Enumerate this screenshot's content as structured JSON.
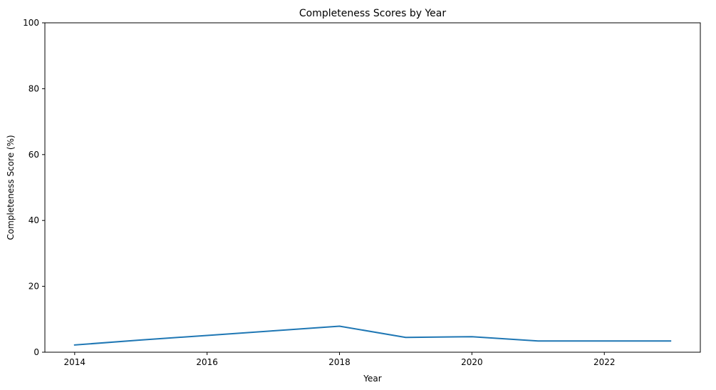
{
  "chart_data": {
    "type": "line",
    "title": "Completeness Scores by Year",
    "xlabel": "Year",
    "ylabel": "Completeness Score (%)",
    "xlim": [
      2013.55,
      2023.45
    ],
    "ylim": [
      0,
      100
    ],
    "x_ticks": [
      2014,
      2016,
      2018,
      2020,
      2022
    ],
    "y_ticks": [
      0,
      20,
      40,
      60,
      80,
      100
    ],
    "grid": false,
    "legend": "none",
    "series": [
      {
        "color": "#1f77b4",
        "x": [
          2014,
          2015,
          2016,
          2017,
          2018,
          2019,
          2020,
          2021,
          2022,
          2023
        ],
        "values": [
          2.2,
          3.7,
          5.1,
          6.5,
          7.9,
          4.5,
          4.7,
          3.4,
          3.4,
          3.4
        ]
      }
    ]
  }
}
